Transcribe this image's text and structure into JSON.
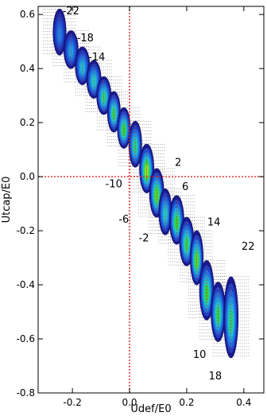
{
  "chart_data": {
    "type": "scatter",
    "title": "",
    "xlabel": "Udef/E0",
    "ylabel": "Utcap/E0",
    "xlim": [
      -0.32,
      0.47
    ],
    "ylim": [
      -0.8,
      0.63
    ],
    "x_ticks": [
      -0.2,
      0.0,
      0.2,
      0.4
    ],
    "x_tick_labels": [
      "-0.2",
      "0.0",
      "0.2",
      "0.4"
    ],
    "y_ticks": [
      -0.8,
      -0.6,
      -0.4,
      -0.2,
      0.0,
      0.2,
      0.4,
      0.6
    ],
    "y_tick_labels": [
      "-0.8",
      "-0.6",
      "-0.4",
      "-0.2",
      "0.0",
      "0.2",
      "0.4",
      "0.6"
    ],
    "reference_lines": [
      {
        "axis": "x",
        "value": 0.0,
        "color": "#e02020",
        "style": "dotted"
      },
      {
        "axis": "y",
        "value": 0.0,
        "color": "#e02020",
        "style": "dotted"
      }
    ],
    "grid": false,
    "colormap": [
      "#1a1a8c",
      "#1f4fd6",
      "#1e90e6",
      "#20c8c8",
      "#34d23a",
      "#9ee82a"
    ],
    "blobs": [
      {
        "cx": -0.245,
        "cy": 0.535,
        "w": 0.045,
        "h": 0.17,
        "level": 0.35
      },
      {
        "cx": -0.205,
        "cy": 0.47,
        "w": 0.05,
        "h": 0.14,
        "level": 0.45
      },
      {
        "cx": -0.165,
        "cy": 0.41,
        "w": 0.05,
        "h": 0.14,
        "level": 0.55
      },
      {
        "cx": -0.125,
        "cy": 0.36,
        "w": 0.05,
        "h": 0.14,
        "level": 0.6
      },
      {
        "cx": -0.09,
        "cy": 0.3,
        "w": 0.05,
        "h": 0.14,
        "level": 0.7
      },
      {
        "cx": -0.055,
        "cy": 0.24,
        "w": 0.045,
        "h": 0.15,
        "level": 0.75
      },
      {
        "cx": -0.02,
        "cy": 0.18,
        "w": 0.045,
        "h": 0.15,
        "level": 0.8
      },
      {
        "cx": 0.02,
        "cy": 0.12,
        "w": 0.045,
        "h": 0.17,
        "level": 0.7
      },
      {
        "cx": 0.06,
        "cy": 0.03,
        "w": 0.05,
        "h": 0.18,
        "level": 0.95
      },
      {
        "cx": 0.095,
        "cy": -0.06,
        "w": 0.05,
        "h": 0.18,
        "level": 0.85
      },
      {
        "cx": 0.125,
        "cy": -0.13,
        "w": 0.045,
        "h": 0.17,
        "level": 0.6
      },
      {
        "cx": 0.165,
        "cy": -0.16,
        "w": 0.05,
        "h": 0.18,
        "level": 0.8
      },
      {
        "cx": 0.2,
        "cy": -0.24,
        "w": 0.05,
        "h": 0.18,
        "level": 0.75
      },
      {
        "cx": 0.235,
        "cy": -0.3,
        "w": 0.045,
        "h": 0.2,
        "level": 0.85
      },
      {
        "cx": 0.27,
        "cy": -0.42,
        "w": 0.05,
        "h": 0.22,
        "level": 0.8
      },
      {
        "cx": 0.31,
        "cy": -0.5,
        "w": 0.05,
        "h": 0.22,
        "level": 0.75
      },
      {
        "cx": 0.355,
        "cy": -0.52,
        "w": 0.05,
        "h": 0.3,
        "level": 0.7
      }
    ],
    "annotations": [
      {
        "text": "-22",
        "x": -0.205,
        "y": 0.6
      },
      {
        "text": "-18",
        "x": -0.155,
        "y": 0.5
      },
      {
        "text": "-14",
        "x": -0.115,
        "y": 0.43
      },
      {
        "text": "-10",
        "x": -0.055,
        "y": -0.04
      },
      {
        "text": "-6",
        "x": -0.02,
        "y": -0.17
      },
      {
        "text": "-2",
        "x": 0.05,
        "y": -0.24
      },
      {
        "text": "2",
        "x": 0.17,
        "y": 0.04
      },
      {
        "text": "6",
        "x": 0.195,
        "y": -0.05
      },
      {
        "text": "14",
        "x": 0.295,
        "y": -0.18
      },
      {
        "text": "22",
        "x": 0.415,
        "y": -0.27
      },
      {
        "text": "10",
        "x": 0.245,
        "y": -0.67
      },
      {
        "text": "18",
        "x": 0.3,
        "y": -0.75
      }
    ]
  }
}
